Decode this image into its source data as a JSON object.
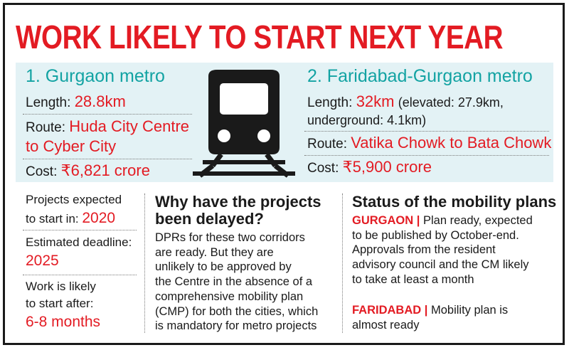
{
  "title": "WORK LIKELY TO START NEXT YEAR",
  "gurgaon": {
    "heading": "1. Gurgaon metro",
    "length_label": "Length:",
    "length_value": "28.8km",
    "route_label": "Route:",
    "route_value_line1": "Huda City Centre",
    "route_value_line2": "to Cyber City",
    "cost_label": "Cost:",
    "cost_value": "₹6,821 crore"
  },
  "faridabad": {
    "heading": "2. Faridabad-Gurgaon metro",
    "length_label": "Length:",
    "length_value": "32km",
    "length_note_line1": "(elevated: 27.9km,",
    "length_note_line2": "underground: 4.1km)",
    "route_label": "Route:",
    "route_value": "Vatika Chowk to Bata Chowk",
    "cost_label": "Cost:",
    "cost_value": "₹5,900 crore"
  },
  "timeline": {
    "projects_label_line1": "Projects expected",
    "projects_label_line2": "to start in:",
    "projects_value": "2020",
    "deadline_label": "Estimated deadline:",
    "deadline_value": "2025",
    "work_label_line1": "Work is likely",
    "work_label_line2": "to start after:",
    "work_value": "6-8 months"
  },
  "delay": {
    "heading_line1": "Why have the projects",
    "heading_line2": "been delayed?",
    "body_lines": [
      "DPRs for these two corridors",
      "are ready. But they are",
      "unlikely to be approved by",
      "the Centre in the absence of a",
      "comprehensive mobility plan",
      "(CMP) for both the cities, which",
      "is mandatory for metro projects"
    ]
  },
  "status": {
    "heading": "Status of the mobility plans",
    "gurgaon_tag": "GURGAON |",
    "gurgaon_lines": [
      "Plan ready, expected",
      "to be published by October-end.",
      "Approvals from the resident",
      "advisory council and the CM likely",
      "to take at least a month"
    ],
    "faridabad_tag": "FARIDABAD |",
    "faridabad_lines": [
      "Mobility plan is",
      "almost ready"
    ]
  },
  "icon": "metro-train-icon",
  "colors": {
    "accent_red": "#e31b23",
    "teal": "#13a3a3",
    "band": "#e3f2f5",
    "ink": "#1a1a1a"
  }
}
